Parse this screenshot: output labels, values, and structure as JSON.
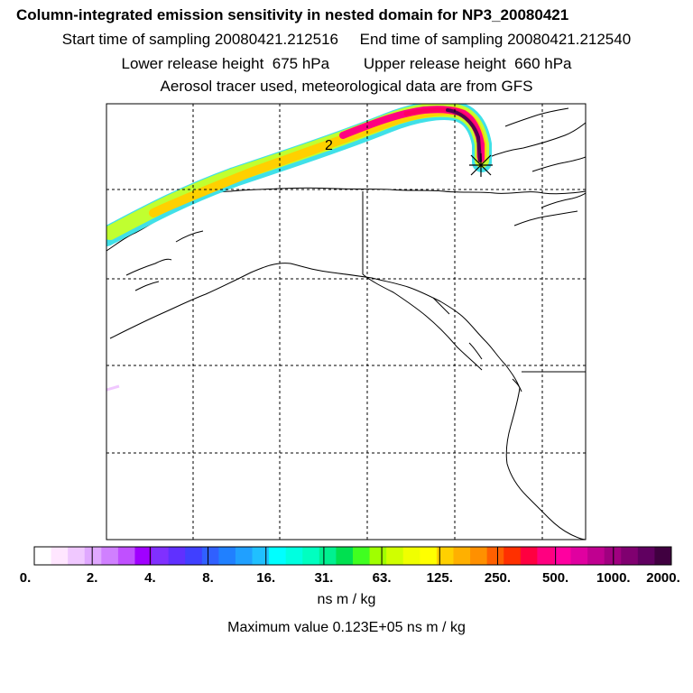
{
  "titles": {
    "main": "Column-integrated emission sensitivity in nested domain for NP3_20080421",
    "line2": "Start time of sampling 20080421.212516     End time of sampling 20080421.212540",
    "line3": "Lower release height  675 hPa        Upper release height  660 hPa",
    "line4": "Aerosol tracer used, meteorological data are from GFS"
  },
  "map": {
    "marker_label": "2",
    "gridlines": "dashed",
    "plume_colors": [
      "#40e0e8",
      "#00f0c0",
      "#c0ff30",
      "#ffff00",
      "#ffb000",
      "#ff5000",
      "#ff0080",
      "#c000a0",
      "#500050"
    ]
  },
  "colorbar": {
    "labels": [
      "0.",
      "2.",
      "4.",
      "8.",
      "16.",
      "31.",
      "63.",
      "125.",
      "250.",
      "500.",
      "1000.",
      "2000."
    ],
    "colors": [
      "#ffffff",
      "#ffe6ff",
      "#f0c8ff",
      "#e0a8ff",
      "#d080ff",
      "#c050ff",
      "#a000ff",
      "#8030ff",
      "#6030ff",
      "#4040ff",
      "#3060ff",
      "#2080ff",
      "#20a0ff",
      "#20c0ff",
      "#00ffff",
      "#00ffe0",
      "#00ffc0",
      "#00f090",
      "#00e050",
      "#40ff20",
      "#a0ff00",
      "#d0ff00",
      "#f0ff00",
      "#ffff00",
      "#ffd000",
      "#ffb000",
      "#ff9000",
      "#ff6000",
      "#ff3000",
      "#ff0040",
      "#ff0080",
      "#ff00a0",
      "#e000a0",
      "#c00090",
      "#a00080",
      "#800070",
      "#600060",
      "#400040"
    ],
    "units": "ns m / kg",
    "max_value": "Maximum value  0.123E+05 ns m / kg"
  }
}
